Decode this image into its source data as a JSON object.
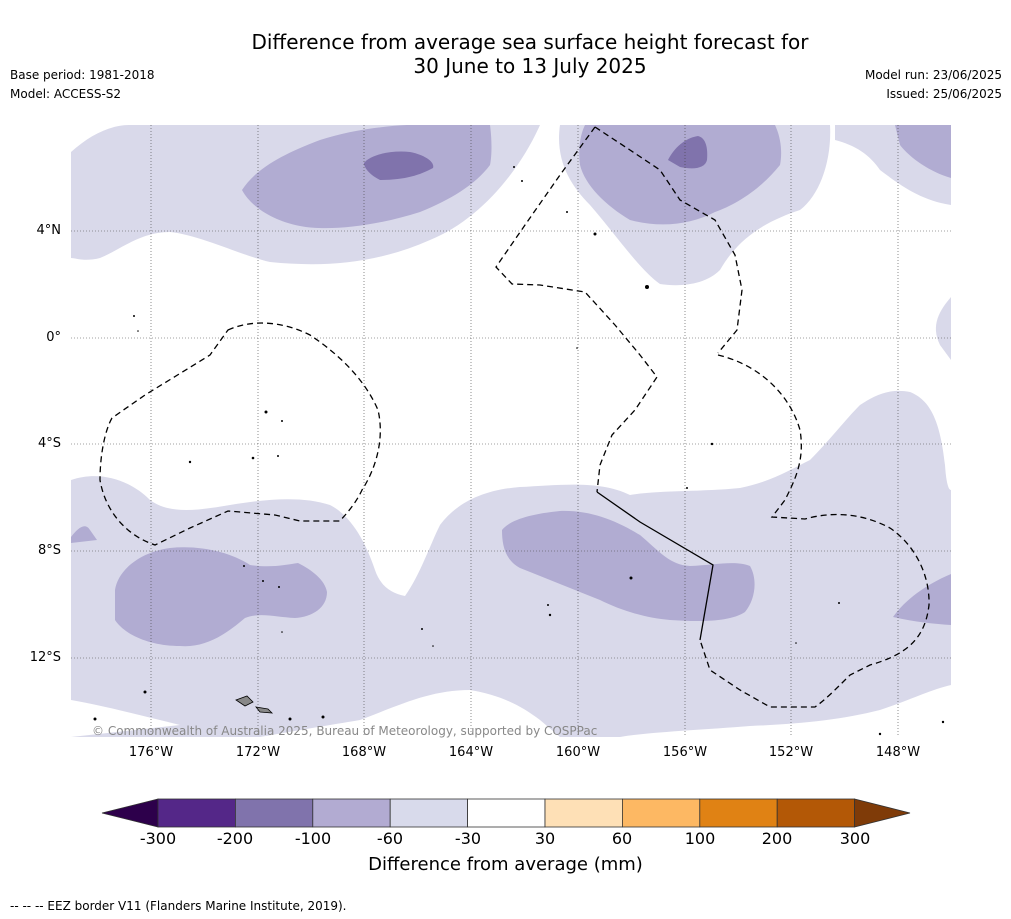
{
  "title_line1": "Difference from average sea surface height forecast for",
  "title_line2": "30 June to 13 July 2025",
  "meta": {
    "base_period": "Base period: 1981-2018",
    "model": "Model: ACCESS-S2",
    "model_run": "Model run: 23/06/2025",
    "issued": "Issued: 25/06/2025"
  },
  "map": {
    "lat_labels": [
      "4°N",
      "0°",
      "4°S",
      "8°S",
      "12°S"
    ],
    "lon_labels": [
      "176°W",
      "172°W",
      "168°W",
      "164°W",
      "160°W",
      "156°W",
      "152°W",
      "148°W"
    ],
    "copyright": "© Commonwealth of Australia 2025, Bureau of Meteorology, supported by COSPPac",
    "fill_colors": {
      "light_purple": "#d9d9ea",
      "mid_purple": "#b1acd2",
      "dark_purple": "#8073ac"
    }
  },
  "colorbar": {
    "ticks": [
      "-300",
      "-200",
      "-100",
      "-60",
      "-30",
      "30",
      "60",
      "100",
      "200",
      "300"
    ],
    "colors": [
      "#2d004b",
      "#542788",
      "#8073ac",
      "#b2abd2",
      "#d8daeb",
      "#ffffff",
      "#fee0b6",
      "#fdb863",
      "#e08214",
      "#b35806",
      "#7f3b08"
    ],
    "label": "Difference from average (mm)"
  },
  "footer": "--  --  -- EEZ border V11 (Flanders Marine Institute, 2019)."
}
